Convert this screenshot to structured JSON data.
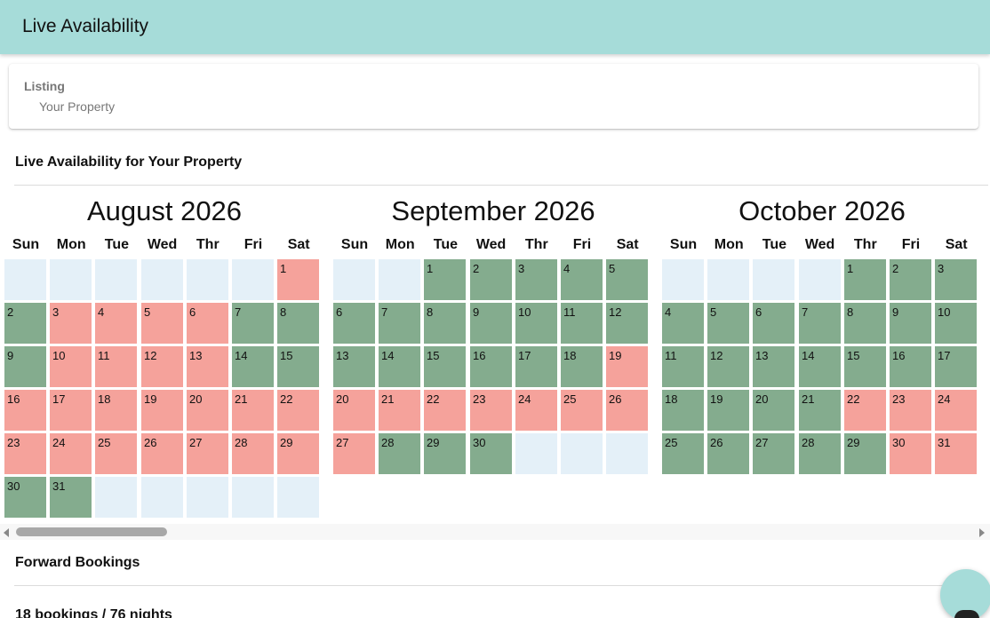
{
  "header": {
    "title": "Live Availability"
  },
  "listing": {
    "label": "Listing",
    "value": "Your Property"
  },
  "availability": {
    "title": "Live Availability for Your Property",
    "weekdays": [
      "Sun",
      "Mon",
      "Tue",
      "Wed",
      "Thr",
      "Fri",
      "Sat"
    ],
    "legend_colors": {
      "empty": "#e4f0f8",
      "booked": "#f5a29b",
      "available": "#84ac8e"
    },
    "months": [
      {
        "title": "August 2026",
        "start_weekday": 6,
        "days_in_month": 31,
        "booked_days": [
          1,
          3,
          4,
          5,
          6,
          10,
          11,
          12,
          13,
          16,
          17,
          18,
          19,
          20,
          21,
          22,
          23,
          24,
          25,
          26,
          27,
          28,
          29
        ]
      },
      {
        "title": "September 2026",
        "start_weekday": 2,
        "days_in_month": 30,
        "booked_days": [
          19,
          20,
          21,
          22,
          23,
          24,
          25,
          26,
          27
        ]
      },
      {
        "title": "October 2026",
        "start_weekday": 4,
        "days_in_month": 31,
        "booked_days": [
          22,
          23,
          24,
          30,
          31
        ]
      }
    ]
  },
  "forward_bookings": {
    "title": "Forward Bookings",
    "summary": "18 bookings / 76 nights"
  },
  "icons": {
    "scroll_left": "triangle-left-icon",
    "scroll_right": "triangle-right-icon",
    "fab": "chat-icon"
  }
}
